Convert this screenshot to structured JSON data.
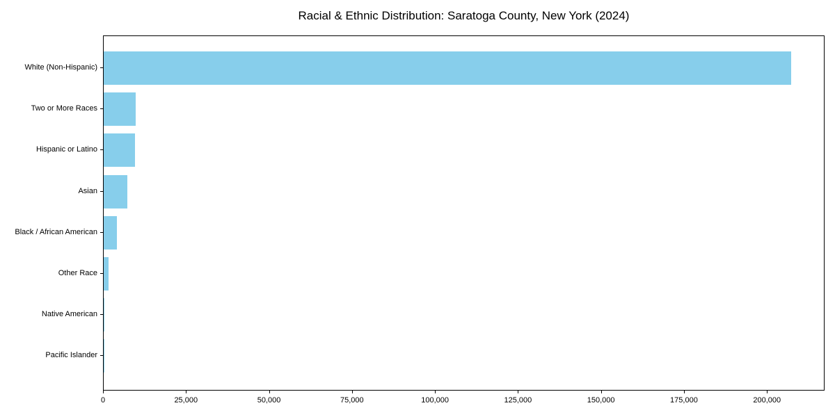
{
  "chart_data": {
    "type": "bar",
    "orientation": "horizontal",
    "title": "Racial & Ethnic Distribution: Saratoga County, New York (2024)",
    "xlabel": "",
    "ylabel": "",
    "categories": [
      "White (Non-Hispanic)",
      "Two or More Races",
      "Hispanic or Latino",
      "Asian",
      "Black / African American",
      "Other Race",
      "Native American",
      "Pacific Islander"
    ],
    "values": [
      207000,
      9700,
      9400,
      7200,
      3900,
      1400,
      150,
      50
    ],
    "xlim": [
      0,
      217350
    ],
    "x_ticks": [
      0,
      25000,
      50000,
      75000,
      100000,
      125000,
      150000,
      175000,
      200000
    ],
    "x_tick_labels": [
      "0",
      "25,000",
      "50,000",
      "75,000",
      "100,000",
      "125,000",
      "150,000",
      "175,000",
      "200,000"
    ],
    "bar_color": "#87CEEB",
    "grid": false,
    "legend": false,
    "background_color": "#ffffff",
    "spine_color": "#000000"
  }
}
